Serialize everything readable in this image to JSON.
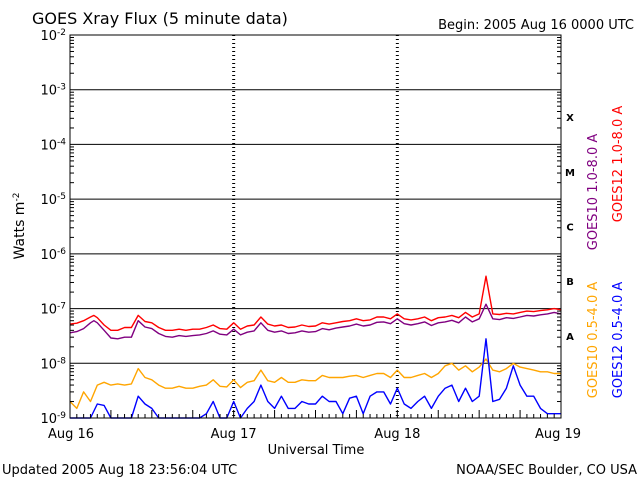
{
  "chart_data": {
    "type": "line",
    "title": "GOES Xray Flux (5 minute data)",
    "begin_label": "Begin:  2005 Aug 16 0000 UTC",
    "xlabel": "Universal Time",
    "ylabel": "Watts m",
    "ylabel_exp": "-2",
    "yscale": "log",
    "ylim": [
      1e-09,
      0.01
    ],
    "xlim": [
      0,
      72
    ],
    "x_unit": "hours since Aug 16 0000 UTC",
    "x_ticks": [
      {
        "x": 0,
        "label": "Aug 16"
      },
      {
        "x": 24,
        "label": "Aug 17"
      },
      {
        "x": 48,
        "label": "Aug 18"
      },
      {
        "x": 72,
        "label": "Aug 19"
      }
    ],
    "y_ticks": [
      {
        "exp": -9,
        "label": "10",
        "sup": "-9"
      },
      {
        "exp": -8,
        "label": "10",
        "sup": "-8"
      },
      {
        "exp": -7,
        "label": "10",
        "sup": "-7"
      },
      {
        "exp": -6,
        "label": "10",
        "sup": "-6"
      },
      {
        "exp": -5,
        "label": "10",
        "sup": "-5"
      },
      {
        "exp": -4,
        "label": "10",
        "sup": "-4"
      },
      {
        "exp": -3,
        "label": "10",
        "sup": "-3"
      },
      {
        "exp": -2,
        "label": "10",
        "sup": "-2"
      }
    ],
    "flare_classes": [
      {
        "label": "A",
        "exp": -7.5
      },
      {
        "label": "B",
        "exp": -6.5
      },
      {
        "label": "C",
        "exp": -5.5
      },
      {
        "label": "M",
        "exp": -4.5
      },
      {
        "label": "X",
        "exp": -3.5
      }
    ],
    "grid": "horizontal lines at decades -8 to -3, dashed day separators",
    "series": [
      {
        "name": "GOES12 1.0-8.0 A",
        "color": "#ff0000",
        "x": [
          0,
          1,
          2,
          3,
          3.5,
          4,
          5,
          6,
          7,
          8,
          9,
          10,
          11,
          12,
          13,
          14,
          15,
          16,
          17,
          18,
          19,
          20,
          21,
          22,
          23,
          24,
          25,
          26,
          27,
          28,
          29,
          30,
          31,
          32,
          33,
          34,
          35,
          36,
          37,
          38,
          39,
          40,
          41,
          42,
          43,
          44,
          45,
          46,
          47,
          48,
          49,
          50,
          51,
          52,
          53,
          54,
          55,
          56,
          57,
          58,
          59,
          60,
          61,
          62,
          63,
          64,
          65,
          66,
          67,
          68,
          69,
          70,
          71,
          72
        ],
        "y": [
          5.2e-08,
          5.4e-08,
          6e-08,
          7e-08,
          7.5e-08,
          6.8e-08,
          5e-08,
          4e-08,
          4e-08,
          4.5e-08,
          4.5e-08,
          7.5e-08,
          5.8e-08,
          5.5e-08,
          4.5e-08,
          4e-08,
          4e-08,
          4.2e-08,
          4e-08,
          4.2e-08,
          4.2e-08,
          4.5e-08,
          5e-08,
          4.3e-08,
          4.2e-08,
          5.5e-08,
          4.2e-08,
          4.8e-08,
          5e-08,
          7e-08,
          5.2e-08,
          4.8e-08,
          5e-08,
          4.5e-08,
          4.6e-08,
          5e-08,
          4.7e-08,
          4.8e-08,
          5.5e-08,
          5.2e-08,
          5.5e-08,
          5.8e-08,
          6e-08,
          6.5e-08,
          6e-08,
          6.2e-08,
          7e-08,
          7e-08,
          6.5e-08,
          8e-08,
          6.5e-08,
          6.2e-08,
          6.5e-08,
          7e-08,
          6e-08,
          6.8e-08,
          7e-08,
          7.5e-08,
          6.8e-08,
          8.5e-08,
          7e-08,
          8e-08,
          3.9e-07,
          8e-08,
          7.8e-08,
          8.2e-08,
          8e-08,
          8.5e-08,
          9e-08,
          8.8e-08,
          9.2e-08,
          9.5e-08,
          1e-07,
          9.5e-08
        ]
      },
      {
        "name": "GOES10 1.0-8.0 A",
        "color": "#800080",
        "x": [
          0,
          1,
          2,
          3,
          3.5,
          4,
          5,
          6,
          7,
          8,
          9,
          10,
          11,
          12,
          13,
          14,
          15,
          16,
          17,
          18,
          19,
          20,
          21,
          22,
          23,
          24,
          25,
          26,
          27,
          28,
          29,
          30,
          31,
          32,
          33,
          34,
          35,
          36,
          37,
          38,
          39,
          40,
          41,
          42,
          43,
          44,
          45,
          46,
          47,
          48,
          49,
          50,
          51,
          52,
          53,
          54,
          55,
          56,
          57,
          58,
          59,
          60,
          61,
          62,
          63,
          64,
          65,
          66,
          67,
          68,
          69,
          70,
          71,
          72
        ],
        "y": [
          3.6e-08,
          3.8e-08,
          4.3e-08,
          5.5e-08,
          6e-08,
          5.5e-08,
          4e-08,
          2.9e-08,
          2.8e-08,
          3e-08,
          3e-08,
          6e-08,
          4.6e-08,
          4.3e-08,
          3.5e-08,
          3.1e-08,
          3e-08,
          3.2e-08,
          3.1e-08,
          3.2e-08,
          3.3e-08,
          3.5e-08,
          3.9e-08,
          3.4e-08,
          3.3e-08,
          4.2e-08,
          3.3e-08,
          3.7e-08,
          3.9e-08,
          5.5e-08,
          4e-08,
          3.7e-08,
          3.9e-08,
          3.5e-08,
          3.6e-08,
          3.9e-08,
          3.7e-08,
          3.8e-08,
          4.3e-08,
          4.1e-08,
          4.4e-08,
          4.6e-08,
          4.8e-08,
          5.2e-08,
          4.8e-08,
          5e-08,
          5.6e-08,
          5.7e-08,
          5.3e-08,
          6.5e-08,
          5.3e-08,
          5e-08,
          5.3e-08,
          5.7e-08,
          4.9e-08,
          5.5e-08,
          5.7e-08,
          6.1e-08,
          5.5e-08,
          7e-08,
          5.7e-08,
          6.5e-08,
          1.2e-07,
          6.5e-08,
          6.3e-08,
          6.8e-08,
          6.6e-08,
          7e-08,
          7.5e-08,
          7.3e-08,
          7.7e-08,
          8e-08,
          8.5e-08,
          8e-08
        ]
      },
      {
        "name": "GOES10 0.5-4.0 A",
        "color": "#ffa500",
        "x": [
          0,
          1,
          2,
          3,
          4,
          5,
          6,
          7,
          8,
          9,
          10,
          11,
          12,
          13,
          14,
          15,
          16,
          17,
          18,
          19,
          20,
          21,
          22,
          23,
          24,
          25,
          26,
          27,
          28,
          29,
          30,
          31,
          32,
          33,
          34,
          35,
          36,
          37,
          38,
          39,
          40,
          41,
          42,
          43,
          44,
          45,
          46,
          47,
          48,
          49,
          50,
          51,
          52,
          53,
          54,
          55,
          56,
          57,
          58,
          59,
          60,
          61,
          62,
          63,
          64,
          65,
          66,
          67,
          68,
          69,
          70,
          71,
          72
        ],
        "y": [
          2e-09,
          1.5e-09,
          3e-09,
          2e-09,
          4e-09,
          4.5e-09,
          4e-09,
          4.2e-09,
          4e-09,
          4.2e-09,
          8e-09,
          5.5e-09,
          5e-09,
          4e-09,
          3.5e-09,
          3.5e-09,
          3.8e-09,
          3.5e-09,
          3.5e-09,
          3.8e-09,
          4e-09,
          5e-09,
          3.8e-09,
          3.7e-09,
          5e-09,
          3.6e-09,
          4.5e-09,
          4.8e-09,
          7.5e-09,
          4.8e-09,
          4.5e-09,
          5.5e-09,
          4.5e-09,
          4.5e-09,
          5e-09,
          4.8e-09,
          4.8e-09,
          6e-09,
          5.5e-09,
          5.5e-09,
          5.5e-09,
          5.8e-09,
          6e-09,
          5.5e-09,
          6e-09,
          6.5e-09,
          6.5e-09,
          5.5e-09,
          7.5e-09,
          5.5e-09,
          5.5e-09,
          6e-09,
          6.5e-09,
          5.5e-09,
          6.5e-09,
          9e-09,
          1e-08,
          7.5e-09,
          9e-09,
          7e-09,
          8.5e-09,
          1.2e-08,
          7.5e-09,
          7e-09,
          8e-09,
          1e-08,
          8.5e-09,
          8e-09,
          7.5e-09,
          7e-09,
          7e-09,
          6.5e-09,
          6.5e-09
        ]
      },
      {
        "name": "GOES12 0.5-4.0 A",
        "color": "#0000ff",
        "x": [
          0,
          1,
          2,
          3,
          4,
          5,
          6,
          7,
          8,
          9,
          10,
          11,
          12,
          13,
          14,
          15,
          16,
          17,
          18,
          19,
          20,
          21,
          22,
          23,
          24,
          25,
          26,
          27,
          28,
          29,
          30,
          31,
          32,
          33,
          34,
          35,
          36,
          37,
          38,
          39,
          40,
          41,
          42,
          43,
          44,
          45,
          46,
          47,
          48,
          49,
          50,
          51,
          52,
          53,
          54,
          55,
          56,
          57,
          58,
          59,
          60,
          61,
          62,
          63,
          64,
          65,
          66,
          67,
          68,
          69,
          70,
          71,
          72
        ],
        "y": [
          1e-09,
          1e-09,
          1e-09,
          1e-09,
          1.8e-09,
          1.7e-09,
          1e-09,
          1e-09,
          1e-09,
          1e-09,
          2.5e-09,
          1.8e-09,
          1.5e-09,
          1e-09,
          1e-09,
          1e-09,
          1e-09,
          1e-09,
          1e-09,
          1e-09,
          1.2e-09,
          2e-09,
          1e-09,
          1e-09,
          2e-09,
          1e-09,
          1.5e-09,
          2e-09,
          4e-09,
          2e-09,
          1.5e-09,
          2.5e-09,
          1.5e-09,
          1.5e-09,
          2e-09,
          1.8e-09,
          1.8e-09,
          2.5e-09,
          2e-09,
          2e-09,
          1.2e-09,
          2.3e-09,
          2.5e-09,
          1.2e-09,
          2.5e-09,
          3e-09,
          3e-09,
          1.8e-09,
          3.5e-09,
          1.8e-09,
          1.5e-09,
          2e-09,
          2.5e-09,
          1.5e-09,
          2.5e-09,
          3.5e-09,
          4e-09,
          2e-09,
          3.5e-09,
          2e-09,
          2.5e-09,
          2.8e-08,
          2e-09,
          2.2e-09,
          3.5e-09,
          9e-09,
          4e-09,
          2.5e-09,
          2.5e-09,
          1.5e-09,
          1.2e-09,
          1.2e-09,
          1.2e-09
        ]
      }
    ]
  },
  "footer": {
    "updated": "Updated 2005 Aug 18 23:56:04 UTC",
    "source": "NOAA/SEC Boulder, CO USA"
  },
  "colors": {
    "gridline": "#000000",
    "background": "#ffffff"
  }
}
